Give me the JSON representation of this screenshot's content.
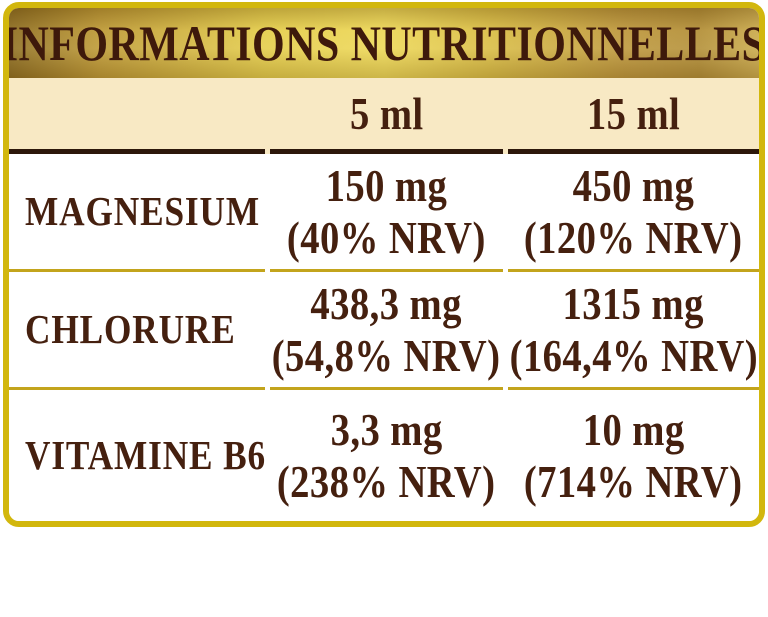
{
  "title": "INFORMATIONS NUTRITIONNELLES",
  "table": {
    "columns": [
      "",
      "5 ml",
      "15 ml"
    ],
    "rows": [
      {
        "label": "MAGNESIUM",
        "values": [
          {
            "amount": "150 mg",
            "nrv": "(40% NRV)"
          },
          {
            "amount": "450 mg",
            "nrv": "(120% NRV)"
          }
        ]
      },
      {
        "label": "CHLORURE",
        "values": [
          {
            "amount": "438,3 mg",
            "nrv": "(54,8% NRV)"
          },
          {
            "amount": "1315 mg",
            "nrv": "(164,4% NRV)"
          }
        ]
      },
      {
        "label": "VITAMINE B6",
        "values": [
          {
            "amount": "3,3 mg",
            "nrv": "(238% NRV)"
          },
          {
            "amount": "10 mg",
            "nrv": "(714% NRV)"
          }
        ]
      }
    ]
  },
  "colors": {
    "border_gold": "#d2b70d",
    "separator_gold": "#c3a41c",
    "heavy_rule": "#2d180a",
    "cream_band": "#f8e9c4",
    "header_gold_center": "#edd85c",
    "header_gold_edge": "#8a6a24",
    "text_maroon": "#45200f"
  }
}
